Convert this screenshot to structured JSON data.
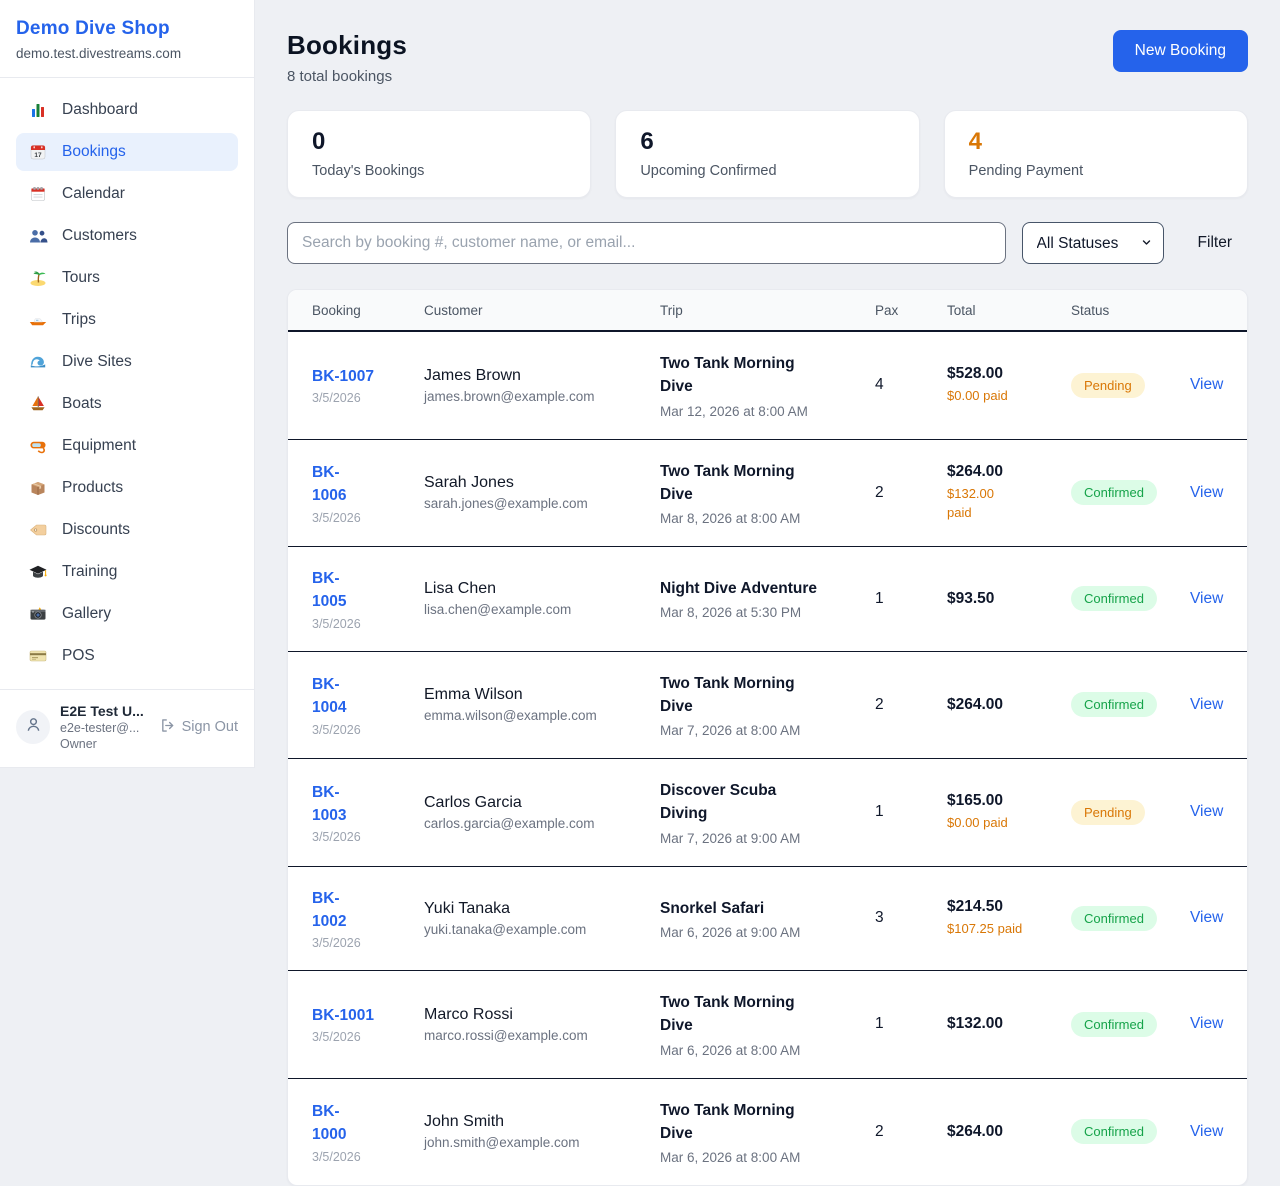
{
  "colors": {
    "accent": "#2563eb",
    "pending_text": "#d97706",
    "pending_bg": "#fdf3d3",
    "confirmed_text": "#16a34a",
    "confirmed_bg": "#dcfce7",
    "paid_text": "#d97706"
  },
  "sidebar": {
    "shop_name": "Demo Dive Shop",
    "shop_domain": "demo.test.divestreams.com",
    "items": [
      {
        "label": "Dashboard",
        "icon": "bar-chart-icon",
        "active": false
      },
      {
        "label": "Bookings",
        "icon": "calendar-date-icon",
        "active": true
      },
      {
        "label": "Calendar",
        "icon": "spiral-calendar-icon",
        "active": false
      },
      {
        "label": "Customers",
        "icon": "people-icon",
        "active": false
      },
      {
        "label": "Tours",
        "icon": "island-icon",
        "active": false
      },
      {
        "label": "Trips",
        "icon": "speedboat-icon",
        "active": false
      },
      {
        "label": "Dive Sites",
        "icon": "wave-icon",
        "active": false
      },
      {
        "label": "Boats",
        "icon": "sailboat-icon",
        "active": false
      },
      {
        "label": "Equipment",
        "icon": "diving-mask-icon",
        "active": false
      },
      {
        "label": "Products",
        "icon": "package-icon",
        "active": false
      },
      {
        "label": "Discounts",
        "icon": "tag-icon",
        "active": false
      },
      {
        "label": "Training",
        "icon": "graduation-cap-icon",
        "active": false
      },
      {
        "label": "Gallery",
        "icon": "camera-icon",
        "active": false
      },
      {
        "label": "POS",
        "icon": "credit-card-icon",
        "active": false
      }
    ],
    "user": {
      "name": "E2E Test U...",
      "email": "e2e-tester@...",
      "role": "Owner",
      "sign_out_label": "Sign Out"
    }
  },
  "header": {
    "title": "Bookings",
    "subtitle": "8 total bookings",
    "new_booking_label": "New Booking"
  },
  "stats": [
    {
      "value": "0",
      "label": "Today's Bookings",
      "highlight": false
    },
    {
      "value": "6",
      "label": "Upcoming Confirmed",
      "highlight": false
    },
    {
      "value": "4",
      "label": "Pending Payment",
      "highlight": true
    }
  ],
  "controls": {
    "search_placeholder": "Search by booking #, customer name, or email...",
    "search_value": "",
    "status_filter_selected": "All Statuses",
    "filter_label": "Filter"
  },
  "table": {
    "columns": [
      "Booking",
      "Customer",
      "Trip",
      "Pax",
      "Total",
      "Status"
    ],
    "view_label": "View",
    "rows": [
      {
        "booking_id": "BK-1007",
        "booking_date": "3/5/2026",
        "customer_name": "James Brown",
        "customer_email": "james.brown@example.com",
        "trip_name": "Two Tank Morning Dive",
        "trip_datetime": "Mar 12, 2026 at 8:00 AM",
        "pax": "4",
        "total": "$528.00",
        "paid": "$0.00 paid",
        "status": "Pending",
        "id_wrapped": false,
        "paid_wrapped": false
      },
      {
        "booking_id": "BK-1006",
        "booking_date": "3/5/2026",
        "customer_name": "Sarah Jones",
        "customer_email": "sarah.jones@example.com",
        "trip_name": "Two Tank Morning Dive",
        "trip_datetime": "Mar 8, 2026 at 8:00 AM",
        "pax": "2",
        "total": "$264.00",
        "paid": "$132.00 paid",
        "status": "Confirmed",
        "id_wrapped": true,
        "paid_wrapped": true
      },
      {
        "booking_id": "BK-1005",
        "booking_date": "3/5/2026",
        "customer_name": "Lisa Chen",
        "customer_email": "lisa.chen@example.com",
        "trip_name": "Night Dive Adventure",
        "trip_datetime": "Mar 8, 2026 at 5:30 PM",
        "pax": "1",
        "total": "$93.50",
        "paid": "",
        "status": "Confirmed",
        "id_wrapped": true,
        "paid_wrapped": false
      },
      {
        "booking_id": "BK-1004",
        "booking_date": "3/5/2026",
        "customer_name": "Emma Wilson",
        "customer_email": "emma.wilson@example.com",
        "trip_name": "Two Tank Morning Dive",
        "trip_datetime": "Mar 7, 2026 at 8:00 AM",
        "pax": "2",
        "total": "$264.00",
        "paid": "",
        "status": "Confirmed",
        "id_wrapped": true,
        "paid_wrapped": false
      },
      {
        "booking_id": "BK-1003",
        "booking_date": "3/5/2026",
        "customer_name": "Carlos Garcia",
        "customer_email": "carlos.garcia@example.com",
        "trip_name": "Discover Scuba Diving",
        "trip_datetime": "Mar 7, 2026 at 9:00 AM",
        "pax": "1",
        "total": "$165.00",
        "paid": "$0.00 paid",
        "status": "Pending",
        "id_wrapped": true,
        "paid_wrapped": false
      },
      {
        "booking_id": "BK-1002",
        "booking_date": "3/5/2026",
        "customer_name": "Yuki Tanaka",
        "customer_email": "yuki.tanaka@example.com",
        "trip_name": "Snorkel Safari",
        "trip_datetime": "Mar 6, 2026 at 9:00 AM",
        "pax": "3",
        "total": "$214.50",
        "paid": "$107.25 paid",
        "status": "Confirmed",
        "id_wrapped": true,
        "paid_wrapped": false
      },
      {
        "booking_id": "BK-1001",
        "booking_date": "3/5/2026",
        "customer_name": "Marco Rossi",
        "customer_email": "marco.rossi@example.com",
        "trip_name": "Two Tank Morning Dive",
        "trip_datetime": "Mar 6, 2026 at 8:00 AM",
        "pax": "1",
        "total": "$132.00",
        "paid": "",
        "status": "Confirmed",
        "id_wrapped": false,
        "paid_wrapped": false
      },
      {
        "booking_id": "BK-1000",
        "booking_date": "3/5/2026",
        "customer_name": "John Smith",
        "customer_email": "john.smith@example.com",
        "trip_name": "Two Tank Morning Dive",
        "trip_datetime": "Mar 6, 2026 at 8:00 AM",
        "pax": "2",
        "total": "$264.00",
        "paid": "",
        "status": "Confirmed",
        "id_wrapped": true,
        "paid_wrapped": false
      }
    ]
  }
}
